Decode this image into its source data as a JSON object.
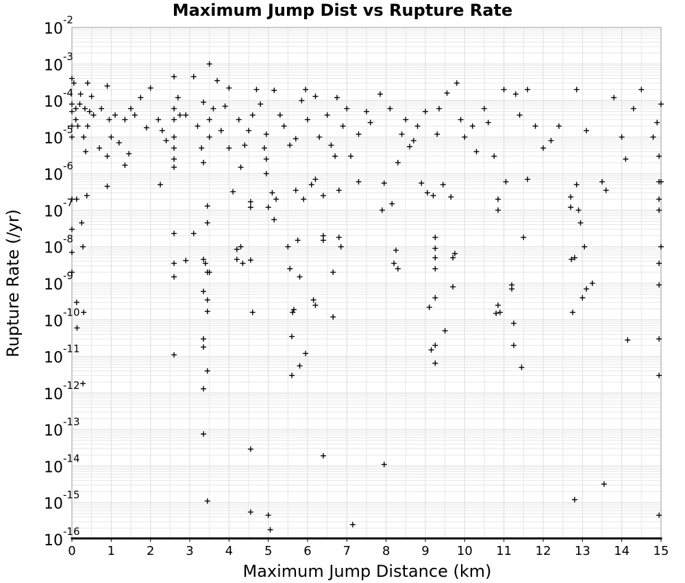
{
  "chart_data": {
    "type": "scatter",
    "title": "Maximum Jump Dist vs Rupture Rate",
    "xlabel": "Maximum Jump Distance (km)",
    "ylabel": "Rupture Rate (/yr)",
    "xlim": [
      0,
      15
    ],
    "ylim": [
      1e-16,
      0.01
    ],
    "y_scale": "log",
    "grid": true,
    "marker": "+",
    "x_ticks": [
      "0",
      "1",
      "2",
      "3",
      "4",
      "5",
      "6",
      "7",
      "8",
      "9",
      "10",
      "11",
      "12",
      "13",
      "14",
      "15"
    ],
    "y_ticks": [
      {
        "base": "10",
        "exp": "-2"
      },
      {
        "base": "10",
        "exp": "-3"
      },
      {
        "base": "10",
        "exp": "-4"
      },
      {
        "base": "10",
        "exp": "-5"
      },
      {
        "base": "10",
        "exp": "-6"
      },
      {
        "base": "10",
        "exp": "-7"
      },
      {
        "base": "10",
        "exp": "-8"
      },
      {
        "base": "10",
        "exp": "-9"
      },
      {
        "base": "10",
        "exp": "-10"
      },
      {
        "base": "10",
        "exp": "-11"
      },
      {
        "base": "10",
        "exp": "-12"
      },
      {
        "base": "10",
        "exp": "-13"
      },
      {
        "base": "10",
        "exp": "-14"
      },
      {
        "base": "10",
        "exp": "-15"
      },
      {
        "base": "10",
        "exp": "-16"
      }
    ],
    "points": [
      [
        0.0,
        3e-08
      ],
      [
        0.0,
        2e-09
      ],
      [
        0.0,
        7e-09
      ],
      [
        0.0,
        8e-05
      ],
      [
        0.0,
        5e-05
      ],
      [
        0.0,
        2e-05
      ],
      [
        0.0,
        1e-05
      ],
      [
        0.0,
        0.0004
      ],
      [
        0.0,
        2e-07
      ],
      [
        0.05,
        0.0003
      ],
      [
        0.1,
        3e-05
      ],
      [
        0.1,
        6e-05
      ],
      [
        0.12,
        2e-07
      ],
      [
        0.12,
        3e-10
      ],
      [
        0.13,
        6e-11
      ],
      [
        0.15,
        2e-05
      ],
      [
        0.2,
        8e-05
      ],
      [
        0.22,
        0.00015
      ],
      [
        0.25,
        4.5e-08
      ],
      [
        0.28,
        1e-08
      ],
      [
        0.3,
        1.6e-10
      ],
      [
        0.3,
        1e-05
      ],
      [
        0.28,
        1.8e-12
      ],
      [
        0.33,
        6e-05
      ],
      [
        0.35,
        4e-06
      ],
      [
        0.38,
        2.5e-07
      ],
      [
        0.4,
        0.0003
      ],
      [
        0.4,
        2e-05
      ],
      [
        0.45,
        5e-05
      ],
      [
        0.5,
        0.00013
      ],
      [
        0.55,
        4e-05
      ],
      [
        0.7,
        5e-06
      ],
      [
        0.75,
        6e-05
      ],
      [
        0.9,
        0.00025
      ],
      [
        0.9,
        4.5e-07
      ],
      [
        0.9,
        3e-06
      ],
      [
        0.95,
        3e-05
      ],
      [
        1.0,
        1e-05
      ],
      [
        1.1,
        4e-05
      ],
      [
        1.2,
        7e-06
      ],
      [
        1.35,
        3e-05
      ],
      [
        1.35,
        1.7e-06
      ],
      [
        1.45,
        3.5e-06
      ],
      [
        1.5,
        6e-05
      ],
      [
        1.6,
        4e-05
      ],
      [
        1.75,
        0.00012
      ],
      [
        1.9,
        1.8e-05
      ],
      [
        2.0,
        0.00022
      ],
      [
        2.2,
        3e-05
      ],
      [
        2.25,
        5e-07
      ],
      [
        2.3,
        1.5e-05
      ],
      [
        2.4,
        8e-06
      ],
      [
        2.6,
        0.00045
      ],
      [
        2.6,
        2.3e-08
      ],
      [
        2.6,
        3.5e-09
      ],
      [
        2.6,
        1.5e-09
      ],
      [
        2.6,
        1.1e-11
      ],
      [
        2.6,
        6e-05
      ],
      [
        2.6,
        3e-05
      ],
      [
        2.6,
        1e-05
      ],
      [
        2.6,
        5e-06
      ],
      [
        2.6,
        2.5e-06
      ],
      [
        2.6,
        1.5e-06
      ],
      [
        2.7,
        0.00012
      ],
      [
        2.75,
        4e-05
      ],
      [
        2.9,
        4.2e-09
      ],
      [
        2.9,
        4e-05
      ],
      [
        3.1,
        2.3e-08
      ],
      [
        3.1,
        0.00045
      ],
      [
        3.2,
        2e-05
      ],
      [
        3.3,
        5e-06
      ],
      [
        3.35,
        4.5e-09
      ],
      [
        3.35,
        6e-10
      ],
      [
        3.35,
        3e-11
      ],
      [
        3.35,
        1.8e-11
      ],
      [
        3.35,
        1.3e-12
      ],
      [
        3.35,
        7.5e-14
      ],
      [
        3.35,
        2e-06
      ],
      [
        3.35,
        9e-05
      ],
      [
        3.4,
        3.5e-09
      ],
      [
        3.45,
        2e-09
      ],
      [
        3.45,
        3.5e-10
      ],
      [
        3.45,
        1.7e-10
      ],
      [
        3.45,
        4e-12
      ],
      [
        3.45,
        1.1e-15
      ],
      [
        3.45,
        4.5e-08
      ],
      [
        3.45,
        1.3e-07
      ],
      [
        3.5,
        2e-09
      ],
      [
        3.5,
        0.001
      ],
      [
        3.5,
        3e-05
      ],
      [
        3.5,
        1e-05
      ],
      [
        3.6,
        6e-05
      ],
      [
        3.7,
        0.00035
      ],
      [
        3.8,
        1.5e-05
      ],
      [
        3.9,
        7e-05
      ],
      [
        4.0,
        0.00022
      ],
      [
        4.0,
        5e-06
      ],
      [
        4.1,
        3.2e-07
      ],
      [
        4.2,
        8.5e-09
      ],
      [
        4.2,
        4.5e-09
      ],
      [
        4.25,
        3e-05
      ],
      [
        4.3,
        1e-08
      ],
      [
        4.3,
        1.5e-06
      ],
      [
        4.35,
        3.5e-09
      ],
      [
        4.4,
        6e-06
      ],
      [
        4.5,
        1.5e-05
      ],
      [
        4.55,
        4.3e-09
      ],
      [
        4.55,
        1.7e-07
      ],
      [
        4.55,
        1.2e-07
      ],
      [
        4.55,
        2.9e-14
      ],
      [
        4.55,
        5.5e-16
      ],
      [
        4.6,
        1.6e-10
      ],
      [
        4.6,
        4e-05
      ],
      [
        4.7,
        0.0002
      ],
      [
        4.8,
        8e-05
      ],
      [
        4.9,
        5e-06
      ],
      [
        4.95,
        2.5e-06
      ],
      [
        4.95,
        1e-06
      ],
      [
        4.95,
        1.2e-05
      ],
      [
        5.0,
        4.5e-16
      ],
      [
        5.0,
        1.2e-07
      ],
      [
        5.05,
        1.8e-16
      ],
      [
        5.1,
        3e-07
      ],
      [
        5.15,
        0.00019
      ],
      [
        5.15,
        5.5e-08
      ],
      [
        5.2,
        2e-07
      ],
      [
        5.3,
        4e-05
      ],
      [
        5.4,
        2e-05
      ],
      [
        5.5,
        1e-08
      ],
      [
        5.55,
        6e-06
      ],
      [
        5.55,
        2.5e-09
      ],
      [
        5.6,
        3e-12
      ],
      [
        5.6,
        3.5e-11
      ],
      [
        5.62,
        1.6e-10
      ],
      [
        5.65,
        1.9e-10
      ],
      [
        5.7,
        3.5e-07
      ],
      [
        5.7,
        9e-06
      ],
      [
        5.75,
        1.5e-08
      ],
      [
        5.8,
        5.5e-12
      ],
      [
        5.8,
        1.5e-09
      ],
      [
        5.85,
        0.0001
      ],
      [
        5.9,
        2e-07
      ],
      [
        5.95,
        0.0002
      ],
      [
        5.95,
        1.2e-11
      ],
      [
        6.0,
        3e-05
      ],
      [
        6.1,
        5e-07
      ],
      [
        6.15,
        3.5e-10
      ],
      [
        6.2,
        0.00013
      ],
      [
        6.2,
        2.5e-10
      ],
      [
        6.2,
        7e-07
      ],
      [
        6.3,
        1e-05
      ],
      [
        6.4,
        2.5e-07
      ],
      [
        6.4,
        2e-08
      ],
      [
        6.4,
        1.5e-08
      ],
      [
        6.4,
        1.9e-14
      ],
      [
        6.5,
        4e-05
      ],
      [
        6.6,
        6e-06
      ],
      [
        6.65,
        2e-09
      ],
      [
        6.65,
        1.2e-10
      ],
      [
        6.7,
        3e-06
      ],
      [
        6.75,
        0.00012
      ],
      [
        6.8,
        1.8e-08
      ],
      [
        6.8,
        3.5e-07
      ],
      [
        6.85,
        1e-08
      ],
      [
        6.9,
        2e-05
      ],
      [
        7.0,
        6e-05
      ],
      [
        7.1,
        3e-06
      ],
      [
        7.15,
        2.5e-16
      ],
      [
        7.3,
        6e-07
      ],
      [
        7.3,
        1.2e-05
      ],
      [
        7.5,
        5e-05
      ],
      [
        7.6,
        2.5e-05
      ],
      [
        7.85,
        0.00015
      ],
      [
        7.9,
        1e-07
      ],
      [
        7.95,
        5.5e-07
      ],
      [
        7.95,
        1.1e-14
      ],
      [
        8.1,
        6e-05
      ],
      [
        8.15,
        1.5e-07
      ],
      [
        8.2,
        3.5e-09
      ],
      [
        8.25,
        8e-09
      ],
      [
        8.3,
        2.5e-09
      ],
      [
        8.3,
        2e-06
      ],
      [
        8.4,
        1.2e-05
      ],
      [
        8.5,
        3e-05
      ],
      [
        8.6,
        5.5e-06
      ],
      [
        8.7,
        8e-06
      ],
      [
        8.8,
        2e-05
      ],
      [
        8.9,
        5.5e-07
      ],
      [
        9.0,
        5e-05
      ],
      [
        9.05,
        3e-07
      ],
      [
        9.1,
        2.2e-10
      ],
      [
        9.15,
        1.5e-11
      ],
      [
        9.2,
        2.5e-07
      ],
      [
        9.25,
        2e-11
      ],
      [
        9.25,
        6.5e-12
      ],
      [
        9.25,
        1.8e-08
      ],
      [
        9.25,
        9e-09
      ],
      [
        9.25,
        5e-09
      ],
      [
        9.25,
        2.5e-09
      ],
      [
        9.25,
        4e-10
      ],
      [
        9.3,
        1.2e-05
      ],
      [
        9.35,
        6e-05
      ],
      [
        9.45,
        5e-07
      ],
      [
        9.5,
        5e-11
      ],
      [
        9.55,
        0.00016
      ],
      [
        9.65,
        2.3e-07
      ],
      [
        9.7,
        5e-09
      ],
      [
        9.7,
        8e-10
      ],
      [
        9.75,
        6.5e-09
      ],
      [
        9.8,
        0.0003
      ],
      [
        9.9,
        3e-05
      ],
      [
        10.0,
        1e-05
      ],
      [
        10.2,
        2e-05
      ],
      [
        10.3,
        4e-06
      ],
      [
        10.5,
        6e-05
      ],
      [
        10.6,
        2.5e-05
      ],
      [
        10.75,
        3e-06
      ],
      [
        10.8,
        1.5e-10
      ],
      [
        10.85,
        2e-07
      ],
      [
        10.85,
        1e-07
      ],
      [
        10.85,
        2.5e-10
      ],
      [
        10.9,
        1.6e-10
      ],
      [
        11.0,
        0.0002
      ],
      [
        11.05,
        6e-07
      ],
      [
        11.2,
        9e-10
      ],
      [
        11.2,
        7e-10
      ],
      [
        11.25,
        8e-11
      ],
      [
        11.25,
        2e-11
      ],
      [
        11.3,
        0.00015
      ],
      [
        11.4,
        4e-05
      ],
      [
        11.45,
        5e-12
      ],
      [
        11.5,
        1.8e-08
      ],
      [
        11.6,
        7e-07
      ],
      [
        11.6,
        0.0002
      ],
      [
        11.8,
        2e-05
      ],
      [
        12.0,
        5e-06
      ],
      [
        12.2,
        8e-06
      ],
      [
        12.4,
        2e-05
      ],
      [
        12.7,
        2.3e-07
      ],
      [
        12.7,
        1.2e-07
      ],
      [
        12.72,
        4.5e-09
      ],
      [
        12.75,
        1.6e-10
      ],
      [
        12.8,
        5e-09
      ],
      [
        12.8,
        1.2e-15
      ],
      [
        12.85,
        5e-07
      ],
      [
        12.85,
        0.0002
      ],
      [
        12.9,
        1e-07
      ],
      [
        12.95,
        4.5e-08
      ],
      [
        13.0,
        4e-10
      ],
      [
        13.05,
        1e-08
      ],
      [
        13.1,
        7e-10
      ],
      [
        13.1,
        1.5e-05
      ],
      [
        13.25,
        1e-09
      ],
      [
        13.5,
        6e-07
      ],
      [
        13.55,
        3.2e-15
      ],
      [
        13.6,
        3.5e-07
      ],
      [
        13.8,
        0.00012
      ],
      [
        14.0,
        1e-05
      ],
      [
        14.1,
        2.5e-06
      ],
      [
        14.15,
        2.8e-11
      ],
      [
        14.3,
        6e-05
      ],
      [
        14.5,
        0.0002
      ],
      [
        14.8,
        1e-05
      ],
      [
        14.9,
        2.5e-05
      ],
      [
        14.95,
        3e-06
      ],
      [
        14.95,
        6e-07
      ],
      [
        14.95,
        2e-07
      ],
      [
        14.95,
        1e-07
      ],
      [
        14.95,
        3.5e-09
      ],
      [
        14.95,
        9e-10
      ],
      [
        14.95,
        3e-11
      ],
      [
        14.95,
        3e-12
      ],
      [
        14.95,
        4.5e-16
      ],
      [
        15.0,
        1e-08
      ],
      [
        15.0,
        6e-07
      ],
      [
        15.0,
        8e-05
      ]
    ],
    "floor_ticks_note": "dense marks at the 1e-16 floor across full x range"
  }
}
